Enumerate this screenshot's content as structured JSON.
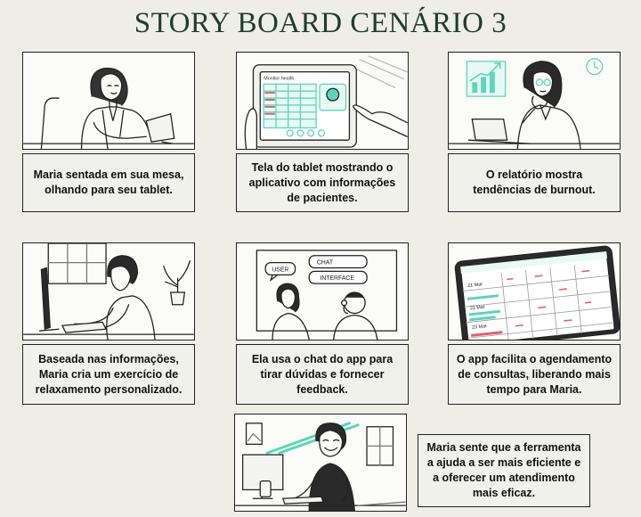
{
  "title": "STORY BOARD CENÁRIO 3",
  "colors": {
    "title": "#1f3d2b",
    "accent": "#5cd6b8",
    "alert": "#e0606a"
  },
  "panels": [
    {
      "caption": "Maria sentada em sua mesa, olhando para seu tablet."
    },
    {
      "caption": "Tela do tablet mostrando o aplicativo com informações de pacientes.",
      "screen_label": "Monitor health"
    },
    {
      "caption": "O relatório mostra tendências de burnout."
    },
    {
      "caption": "Baseada nas informações, Maria cria um exercício de relaxamento personalizado."
    },
    {
      "caption": "Ela usa o chat do app para tirar dúvidas e fornecer feedback.",
      "bubbles": [
        "USER",
        "CHAT",
        "INTERFACE"
      ]
    },
    {
      "caption": "O app facilita o agendamento de consultas, liberando mais tempo para Maria.",
      "calendar_dates": [
        "21 Mat",
        "22 Mat",
        "23 Mat"
      ]
    },
    {
      "caption": "Maria sente que a ferramenta a ajuda a ser mais eficiente e a oferecer um atendimento mais eficaz."
    }
  ]
}
